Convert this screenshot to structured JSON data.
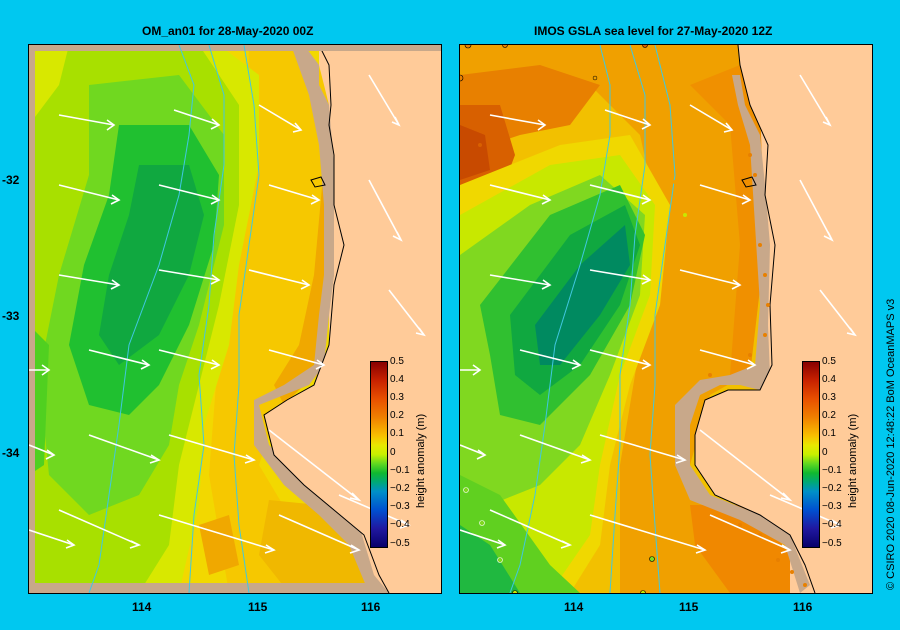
{
  "panels": [
    {
      "title": "OM_an01  for 28-May-2020 00Z"
    },
    {
      "title": "IMOS  GSLA sea level   for 27-May-2020 12Z"
    }
  ],
  "axes": {
    "lat_ticks": [
      "-32",
      "-33",
      "-34"
    ],
    "lon_ticks": [
      "114",
      "115",
      "116"
    ]
  },
  "colorbar": {
    "title": "height anomaly  (m)",
    "ticks": [
      "0.5",
      "0.4",
      "0.3",
      "0.2",
      "0.1",
      "0",
      "−0.1",
      "−0.2",
      "−0.3",
      "−0.4",
      "−0.5"
    ],
    "range": [
      -0.5,
      0.5
    ]
  },
  "colors": {
    "background": "#00c8f0",
    "land": "#ffcb99",
    "shelf": "#c8a88a",
    "arrows": "#ffffff",
    "bathymetry": "#40c8e0"
  },
  "credit": "© CSIRO 2020   08-Jun-2020 12:48:22 BoM OceanMAPS v3"
}
